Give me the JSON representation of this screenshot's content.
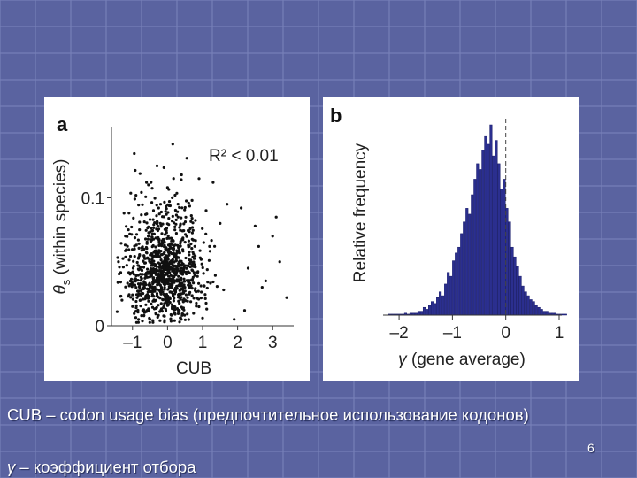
{
  "slide": {
    "caption_line1": "CUB – codon usage bias (предпочтительное использование кодонов)",
    "caption_line2_symbol": "γ",
    "caption_line2_text": " – коэффициент отбора",
    "slide_number": "6",
    "colors": {
      "background": "#5a63a0",
      "grid": "#7e87bf",
      "panel": "#ffffff",
      "bar": "#2b2f8f",
      "point": "#111111"
    }
  },
  "chart_data": [
    {
      "type": "scatter",
      "panel_label": "a",
      "annotation": "R² < 0.01",
      "xlabel": "CUB",
      "ylabel_symbol": "θ",
      "ylabel_sub": "s",
      "ylabel_text": "(within species)",
      "xlim": [
        -1.6,
        3.6
      ],
      "ylim": [
        0,
        0.155
      ],
      "xticks": [
        {
          "value": -1,
          "label": "–1"
        },
        {
          "value": 0,
          "label": "0"
        },
        {
          "value": 1,
          "label": "1"
        },
        {
          "value": 2,
          "label": "2"
        },
        {
          "value": 3,
          "label": "3"
        }
      ],
      "yticks": [
        {
          "value": 0,
          "label": "0"
        },
        {
          "value": 0.1,
          "label": "0.1"
        }
      ],
      "points": [
        [
          0.15,
          0.142
        ],
        [
          -0.3,
          0.125
        ],
        [
          0.55,
          0.131
        ],
        [
          0.9,
          0.115
        ],
        [
          1.3,
          0.112
        ],
        [
          -0.6,
          0.112
        ],
        [
          0.4,
          0.118
        ],
        [
          0.0,
          0.108
        ],
        [
          -0.9,
          0.102
        ],
        [
          1.7,
          0.095
        ],
        [
          2.1,
          0.092
        ],
        [
          2.5,
          0.078
        ],
        [
          3.0,
          0.07
        ],
        [
          3.2,
          0.05
        ],
        [
          2.8,
          0.035
        ],
        [
          3.4,
          0.022
        ],
        [
          -1.4,
          0.05
        ],
        [
          -1.3,
          0.02
        ],
        [
          -1.2,
          0.07
        ],
        [
          2.2,
          0.012
        ],
        [
          1.9,
          0.005
        ],
        [
          -0.5,
          0.005
        ],
        [
          0.2,
          0.004
        ],
        [
          1.0,
          0.006
        ],
        [
          3.1,
          0.085
        ],
        [
          2.6,
          0.062
        ],
        [
          1.5,
          0.08
        ],
        [
          -1.1,
          0.088
        ],
        [
          0.7,
          0.098
        ],
        [
          -0.2,
          0.095
        ],
        [
          1.2,
          0.062
        ],
        [
          2.3,
          0.045
        ],
        [
          2.7,
          0.03
        ],
        [
          -1.0,
          0.015
        ],
        [
          0.5,
          0.02
        ],
        [
          1.6,
          0.028
        ],
        [
          -0.8,
          0.075
        ],
        [
          0.3,
          0.085
        ],
        [
          1.1,
          0.09
        ],
        [
          -0.4,
          0.09
        ]
      ],
      "cloud": {
        "n": 1100,
        "center": [
          -0.1,
          0.038
        ],
        "spread": [
          0.55,
          0.02
        ]
      }
    },
    {
      "type": "bar",
      "panel_label": "b",
      "xlabel_symbol": "γ",
      "xlabel_text": " (gene average)",
      "ylabel": "Relative frequency",
      "xlim": [
        -2.3,
        1.05
      ],
      "xticks": [
        {
          "value": -2,
          "label": "–2"
        },
        {
          "value": -1,
          "label": "–1"
        },
        {
          "value": 0,
          "label": "0"
        },
        {
          "value": 1,
          "label": "1"
        }
      ],
      "reference_line_x": 0,
      "bin_start": -2.2,
      "bin_width": 0.05,
      "values": [
        0.005,
        0.005,
        0.005,
        0.005,
        0.005,
        0.005,
        0.01,
        0.005,
        0.01,
        0.01,
        0.01,
        0.02,
        0.02,
        0.04,
        0.03,
        0.05,
        0.07,
        0.06,
        0.09,
        0.12,
        0.1,
        0.16,
        0.22,
        0.2,
        0.28,
        0.32,
        0.35,
        0.42,
        0.48,
        0.55,
        0.52,
        0.62,
        0.7,
        0.78,
        0.75,
        0.85,
        0.92,
        0.88,
        0.98,
        0.82,
        0.9,
        0.78,
        0.65,
        0.7,
        0.55,
        0.48,
        0.35,
        0.3,
        0.25,
        0.2,
        0.15,
        0.12,
        0.1,
        0.08,
        0.07,
        0.05,
        0.04,
        0.03,
        0.02,
        0.02,
        0.01,
        0.01,
        0.01,
        0.005,
        0.005,
        0.005,
        0.005
      ]
    }
  ]
}
